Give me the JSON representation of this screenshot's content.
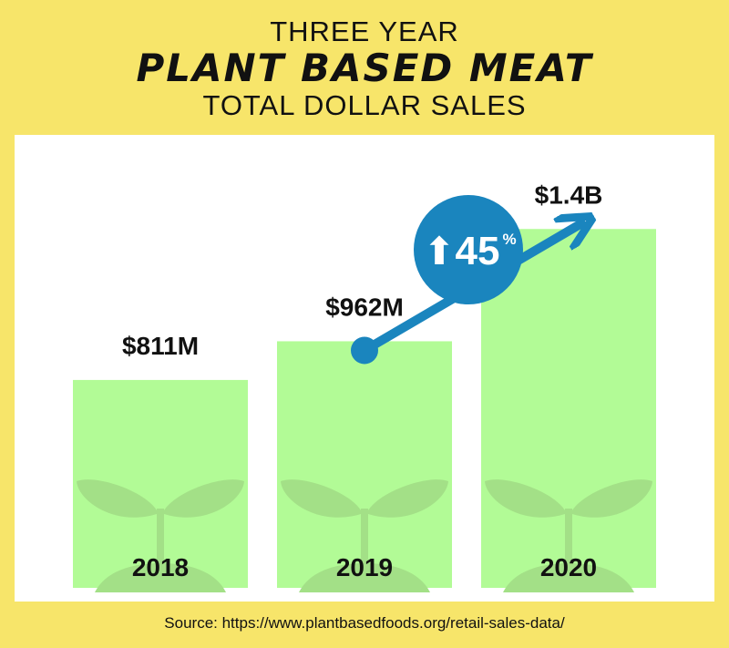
{
  "header": {
    "line1": "THREE YEAR",
    "line2": "PLANT BASED MEAT",
    "line3": "TOTAL DOLLAR SALES"
  },
  "source": "Source: https://www.plantbasedfoods.org/retail-sales-data/",
  "colors": {
    "background": "#f7e56a",
    "panel": "#ffffff",
    "bar": "#b2fb96",
    "sprout": "#a3e087",
    "arrow": "#1a85be"
  },
  "icons": [
    "sprout-icon",
    "up-arrow-icon"
  ],
  "growth": {
    "arrow_glyph": "⬆",
    "value": "45",
    "unit": "%"
  },
  "chart_data": {
    "type": "bar",
    "categories": [
      "2018",
      "2019",
      "2020"
    ],
    "values": [
      811,
      962,
      1400
    ],
    "value_labels": [
      "$811M",
      "$962M",
      "$1.4B"
    ],
    "unit": "million USD",
    "ylim": [
      0,
      1600
    ],
    "grid": false,
    "legend": "none",
    "annotation": "arrow from 2019 to 2020 showing 45% growth"
  }
}
